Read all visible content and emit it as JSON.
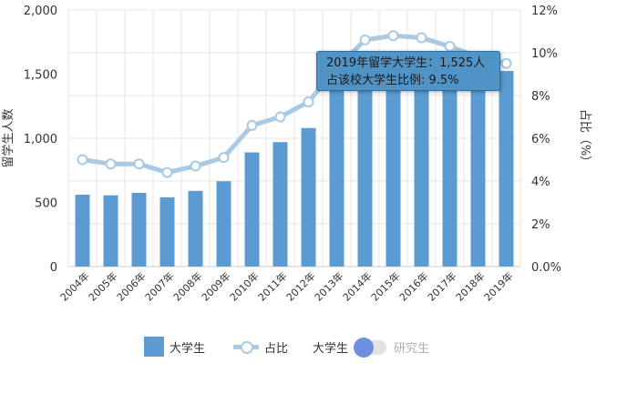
{
  "chart_data": {
    "type": "bar",
    "categories": [
      "2004年",
      "2005年",
      "2006年",
      "2007年",
      "2008年",
      "2009年",
      "2010年",
      "2011年",
      "2012年",
      "2013年",
      "2014年",
      "2015年",
      "2016年",
      "2017年",
      "2018年",
      "2019年"
    ],
    "series": [
      {
        "name": "大学生",
        "type": "bar",
        "axis": "left",
        "color": "#5b9bd1",
        "values": [
          560,
          555,
          575,
          540,
          590,
          665,
          890,
          970,
          1080,
          1380,
          1400,
          1410,
          1440,
          1430,
          1420,
          1525
        ]
      },
      {
        "name": "占比",
        "type": "line",
        "axis": "right",
        "color": "#a9c9e4",
        "values": [
          5.0,
          4.8,
          4.8,
          4.4,
          4.7,
          5.1,
          6.6,
          7.0,
          7.7,
          9.3,
          10.6,
          10.8,
          10.7,
          10.3,
          9.8,
          9.5
        ]
      }
    ],
    "ylabel": "留学生人数",
    "y2label": "占比（%）",
    "ylim": [
      0,
      2000
    ],
    "y2lim": [
      0,
      12
    ],
    "yticks": [
      "0",
      "500",
      "1,000",
      "1,500",
      "2,000"
    ],
    "y2ticks": [
      "0.0%",
      "2%",
      "4%",
      "6%",
      "8%",
      "10%",
      "12%"
    ],
    "grid": true
  },
  "tooltip": {
    "line1": "2019年留学大学生：1,525人",
    "line2": "占该校大学生比例: 9.5%"
  },
  "legend": {
    "bar_label": "大学生",
    "line_label": "占比",
    "toggle_left_label": "大学生",
    "toggle_right_label": "研究生"
  }
}
